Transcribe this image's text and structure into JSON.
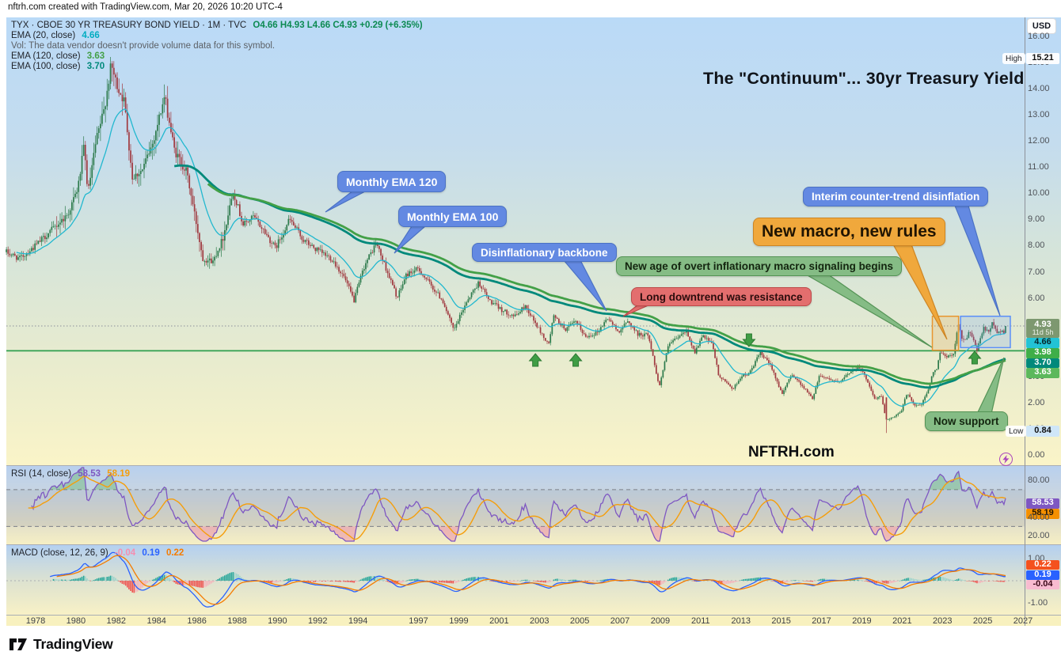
{
  "attribution": "nftrh.com created with TradingView.com, Mar 20, 2026 10:20 UTC-4",
  "header": {
    "symbol_line": "TYX · CBOE 30 YR TREASURY BOND YIELD · 1M · TVC",
    "ohlc": "O4.66  H4.93  L4.66  C4.93  +0.29 (+6.35%)",
    "ema20_label": "EMA (20, close)",
    "ema20_value": "4.66",
    "vol_note": "Vol: The data vendor doesn't provide volume data for this symbol.",
    "ema120_label": "EMA (120, close)",
    "ema120_value": "3.63",
    "ema100_label": "EMA (100, close)",
    "ema100_value": "3.70"
  },
  "title": "The \"Continuum\"... 30yr Treasury Yield",
  "watermark": "NFTRH.com",
  "callouts": {
    "ema120": "Monthly EMA 120",
    "ema100": "Monthly EMA 100",
    "backbone": "Disinflationary backbone",
    "interim": "Interim counter-trend disinflation",
    "new_macro": "New macro, new rules",
    "new_age": "New age of overt inflationary macro signaling begins",
    "resistance": "Long downtrend was resistance",
    "support": "Now support"
  },
  "axis": {
    "currency": "USD",
    "high_label": "High",
    "high_value": "15.21",
    "low_label": "Low",
    "low_value": "0.84",
    "last_price": "4.93",
    "countdown": "11d 5h",
    "ema20_badge": "4.66",
    "level_badge": "3.98",
    "ema100_badge": "3.70",
    "ema120_badge": "3.63"
  },
  "rsi": {
    "legend": "RSI (14, close)",
    "value1": "58.53",
    "value2": "58.19",
    "ticks": [
      "80.00",
      "40.00",
      "20.00"
    ]
  },
  "macd": {
    "legend": "MACD (close, 12, 26, 9)",
    "hist_value": "-0.04",
    "macd_value": "0.19",
    "signal_value": "0.22",
    "ticks": [
      "1.00",
      "-1.00"
    ]
  },
  "time_axis": [
    "1978",
    "1980",
    "1982",
    "1984",
    "1986",
    "1988",
    "1990",
    "1992",
    "1994",
    "1997",
    "1999",
    "2001",
    "2003",
    "2005",
    "2007",
    "2009",
    "2011",
    "2013",
    "2015",
    "2017",
    "2019",
    "2021",
    "2023",
    "2025",
    "2027"
  ],
  "footer": {
    "brand": "TradingView"
  },
  "colors": {
    "up": "#2c7a4b",
    "down": "#a03a40",
    "ema20": "#22b8cf",
    "ema100": "#00897b",
    "ema120": "#43a047",
    "support_line": "#2e9e4f",
    "rsi": "#7e57c2",
    "rsi_ma": "#f59e0b",
    "macd": "#2962ff",
    "signal": "#f57c00"
  },
  "chart_data": {
    "type": "candlestick",
    "symbol": "TYX",
    "description": "CBOE 30 YR TREASURY BOND YIELD",
    "interval": "1M",
    "exchange": "TVC",
    "last_bar": {
      "open": 4.66,
      "high": 4.93,
      "low": 4.66,
      "close": 4.93,
      "change": 0.29,
      "change_pct": 6.35
    },
    "all_time_high": {
      "value": 15.21,
      "year": 1981.75
    },
    "all_time_low": {
      "value": 0.84,
      "year": 2020.2
    },
    "horizontal_support_level": 3.98,
    "x_range_years": [
      1976.55,
      2026.45
    ],
    "y_range": [
      0,
      17.1
    ],
    "anchors": [
      [
        1976.55,
        7.75
      ],
      [
        1977.2,
        7.5
      ],
      [
        1978.0,
        8.0
      ],
      [
        1978.8,
        8.6
      ],
      [
        1979.6,
        9.2
      ],
      [
        1980.1,
        10.2
      ],
      [
        1980.4,
        11.8
      ],
      [
        1980.6,
        10.0
      ],
      [
        1981.0,
        12.0
      ],
      [
        1981.4,
        13.2
      ],
      [
        1981.75,
        14.9
      ],
      [
        1982.0,
        14.2
      ],
      [
        1982.4,
        13.5
      ],
      [
        1982.8,
        10.6
      ],
      [
        1983.3,
        10.9
      ],
      [
        1983.8,
        11.9
      ],
      [
        1984.4,
        13.7
      ],
      [
        1984.9,
        11.6
      ],
      [
        1985.5,
        10.8
      ],
      [
        1986.3,
        7.5
      ],
      [
        1986.8,
        7.4
      ],
      [
        1987.3,
        8.3
      ],
      [
        1987.8,
        10.1
      ],
      [
        1988.3,
        8.8
      ],
      [
        1988.8,
        9.1
      ],
      [
        1989.3,
        8.6
      ],
      [
        1989.9,
        7.9
      ],
      [
        1990.6,
        9.0
      ],
      [
        1991.3,
        8.2
      ],
      [
        1992.0,
        7.8
      ],
      [
        1992.7,
        7.5
      ],
      [
        1993.3,
        6.8
      ],
      [
        1993.8,
        5.9
      ],
      [
        1994.3,
        7.2
      ],
      [
        1994.9,
        8.1
      ],
      [
        1995.5,
        6.9
      ],
      [
        1995.95,
        6.0
      ],
      [
        1996.4,
        6.9
      ],
      [
        1997.0,
        7.1
      ],
      [
        1997.6,
        6.5
      ],
      [
        1998.2,
        5.9
      ],
      [
        1998.75,
        4.75
      ],
      [
        1999.4,
        5.9
      ],
      [
        2000.0,
        6.6
      ],
      [
        2000.5,
        5.9
      ],
      [
        2001.2,
        5.5
      ],
      [
        2001.8,
        5.3
      ],
      [
        2002.3,
        5.7
      ],
      [
        2002.9,
        4.9
      ],
      [
        2003.45,
        4.2
      ],
      [
        2003.7,
        5.3
      ],
      [
        2004.3,
        4.8
      ],
      [
        2004.8,
        5.1
      ],
      [
        2005.3,
        4.5
      ],
      [
        2005.9,
        4.7
      ],
      [
        2006.4,
        5.25
      ],
      [
        2006.9,
        4.7
      ],
      [
        2007.4,
        5.1
      ],
      [
        2007.9,
        4.6
      ],
      [
        2008.4,
        4.6
      ],
      [
        2008.95,
        2.6
      ],
      [
        2009.4,
        4.2
      ],
      [
        2009.9,
        4.5
      ],
      [
        2010.3,
        4.75
      ],
      [
        2010.7,
        3.9
      ],
      [
        2011.1,
        4.55
      ],
      [
        2011.6,
        4.2
      ],
      [
        2011.9,
        3.0
      ],
      [
        2012.4,
        2.7
      ],
      [
        2012.6,
        2.5
      ],
      [
        2013.0,
        3.0
      ],
      [
        2013.4,
        3.1
      ],
      [
        2013.95,
        3.9
      ],
      [
        2014.5,
        3.4
      ],
      [
        2015.05,
        2.3
      ],
      [
        2015.5,
        3.1
      ],
      [
        2016.1,
        2.6
      ],
      [
        2016.55,
        2.15
      ],
      [
        2016.9,
        3.05
      ],
      [
        2017.4,
        2.9
      ],
      [
        2017.9,
        2.75
      ],
      [
        2018.3,
        3.1
      ],
      [
        2018.85,
        3.4
      ],
      [
        2019.3,
        2.8
      ],
      [
        2019.65,
        2.1
      ],
      [
        2019.95,
        2.3
      ],
      [
        2020.2,
        1.35
      ],
      [
        2020.6,
        1.45
      ],
      [
        2020.95,
        1.65
      ],
      [
        2021.25,
        2.4
      ],
      [
        2021.6,
        1.9
      ],
      [
        2021.95,
        1.9
      ],
      [
        2022.3,
        2.5
      ],
      [
        2022.5,
        3.1
      ],
      [
        2022.75,
        3.3
      ],
      [
        2022.85,
        3.9
      ],
      [
        2023.0,
        3.95
      ],
      [
        2023.2,
        3.7
      ],
      [
        2023.55,
        3.9
      ],
      [
        2023.8,
        5.05
      ],
      [
        2023.95,
        4.5
      ],
      [
        2024.1,
        4.35
      ],
      [
        2024.35,
        4.7
      ],
      [
        2024.55,
        4.4
      ],
      [
        2024.7,
        3.95
      ],
      [
        2024.95,
        4.6
      ],
      [
        2025.05,
        4.85
      ],
      [
        2025.35,
        4.65
      ],
      [
        2025.45,
        5.05
      ],
      [
        2025.6,
        4.85
      ],
      [
        2025.75,
        4.65
      ],
      [
        2025.95,
        4.8
      ],
      [
        2026.05,
        4.64
      ],
      [
        2026.13,
        4.66
      ],
      [
        2026.21,
        4.93
      ]
    ],
    "indicators": {
      "ema": [
        20,
        100,
        120
      ],
      "ema_current": {
        "ema20": 4.66,
        "ema100": 3.7,
        "ema120": 3.63
      },
      "rsi": {
        "length": 14,
        "current": 58.53,
        "ma_current": 58.19,
        "bands": [
          70,
          30
        ]
      },
      "macd": {
        "fast": 12,
        "slow": 26,
        "signal": 9,
        "current_macd": 0.19,
        "current_signal": 0.22,
        "current_hist": -0.04
      }
    },
    "markers": {
      "up_arrows_years": [
        2002.8,
        2004.8,
        2024.6
      ],
      "down_arrow_years": [
        2013.4
      ],
      "highlight_boxes": [
        {
          "label": "new-macro-zone",
          "x_years": [
            2022.5,
            2023.8
          ],
          "y_values": [
            4.0,
            5.3
          ],
          "color": "#e8952f"
        },
        {
          "label": "interim-disinflation-zone",
          "x_years": [
            2023.9,
            2026.4
          ],
          "y_values": [
            4.1,
            5.3
          ],
          "color": "#5b8ff9"
        }
      ]
    }
  }
}
